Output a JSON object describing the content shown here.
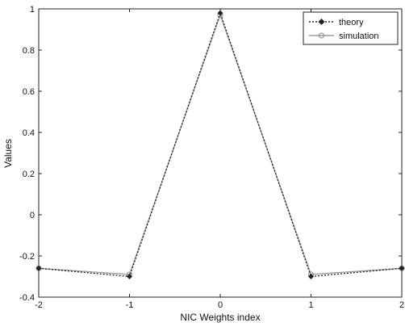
{
  "chart_data": {
    "type": "line",
    "xlabel": "NIC Weights index",
    "ylabel": "Values",
    "xlim": [
      -2,
      2
    ],
    "ylim": [
      -0.4,
      1
    ],
    "x_ticks": [
      "-2",
      "-1",
      "0",
      "1",
      "2"
    ],
    "y_ticks": [
      "-0.4",
      "-0.2",
      "0",
      "0.2",
      "0.4",
      "0.6",
      "0.8",
      "1"
    ],
    "x_tick_values": [
      -2,
      -1,
      0,
      1,
      2
    ],
    "y_tick_values": [
      -0.4,
      -0.2,
      0,
      0.2,
      0.4,
      0.6,
      0.8,
      1
    ],
    "grid": false,
    "legend_position": "top-right",
    "x": [
      -2,
      -1,
      0,
      1,
      2
    ],
    "series": [
      {
        "name": "theory",
        "values": [
          -0.26,
          -0.3,
          0.98,
          -0.3,
          -0.26
        ],
        "color": "#222222",
        "style": "dotted",
        "marker": "diamond"
      },
      {
        "name": "simulation",
        "values": [
          -0.26,
          -0.29,
          0.97,
          -0.29,
          -0.26
        ],
        "color": "#9a9a9a",
        "style": "solid",
        "marker": "circle"
      }
    ]
  }
}
